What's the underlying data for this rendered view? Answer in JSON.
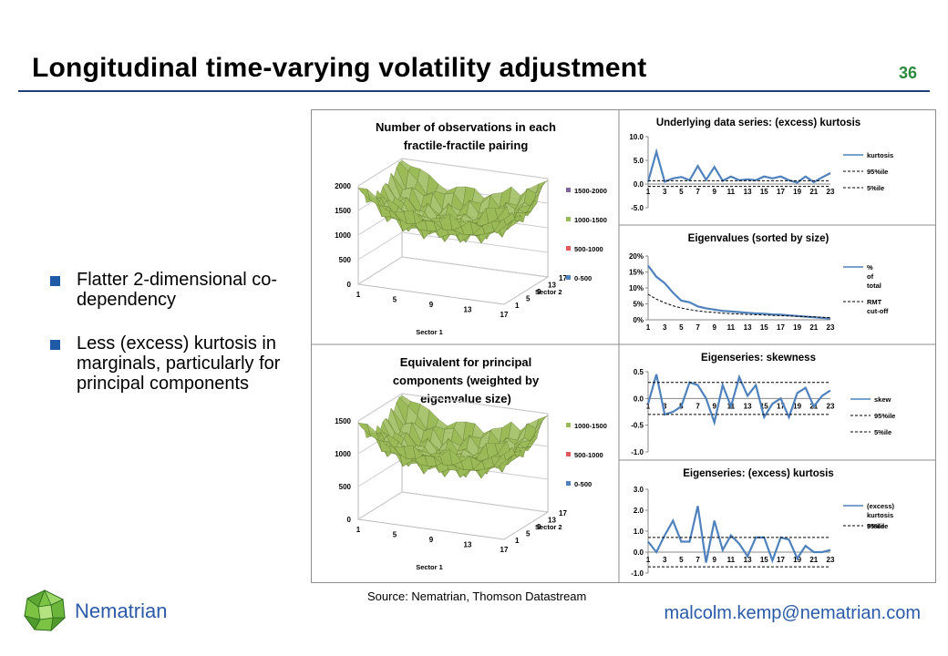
{
  "slide": {
    "title": "Longitudinal time-varying volatility adjustment",
    "page_number": "36",
    "bullets": [
      "Flatter 2-dimensional co-dependency",
      "Less (excess) kurtosis in marginals, particularly for principal components"
    ],
    "source": "Source: Nematrian, Thomson Datastream",
    "brand": "Nematrian",
    "email": "malcolm.kemp@nematrian.com"
  },
  "colors": {
    "series_blue": "#4f81bd",
    "surface_green": "#9bbb59",
    "surface_red": "#e0585a",
    "legend_purple": "#8064a2",
    "legend_blue": "#4f81bd",
    "title_rule": "#1f3f7a",
    "brand_blue": "#2a5aa8",
    "page_number_green": "#2b8a3e"
  },
  "chart_data": [
    {
      "id": "surface-obs",
      "type": "surface",
      "title": [
        "Number of observations in each",
        "fractile-fractile pairing"
      ],
      "xlabel": "Sector 1",
      "ylabel": "Sector 2",
      "x_ticks": [
        "1",
        "5",
        "9",
        "13",
        "17"
      ],
      "y_ticks": [
        "1",
        "5",
        "9",
        "13",
        "17"
      ],
      "z_ticks": [
        "0",
        "500",
        "1000",
        "1500",
        "2000"
      ],
      "zlim": [
        0,
        2000
      ],
      "legend": [
        {
          "label": "1500-2000",
          "color": "#8064a2"
        },
        {
          "label": "1000-1500",
          "color": "#9bbb59"
        },
        {
          "label": "500-1000",
          "color": "#e0585a"
        },
        {
          "label": "0-500",
          "color": "#4f81bd"
        }
      ]
    },
    {
      "id": "surface-pc",
      "type": "surface",
      "title": [
        "Equivalent for principal",
        "components (weighted by",
        "eigenvalue size)"
      ],
      "xlabel": "Sector 1",
      "ylabel": "Sector 2",
      "x_ticks": [
        "1",
        "5",
        "9",
        "13",
        "17"
      ],
      "y_ticks": [
        "1",
        "5",
        "9",
        "13",
        "17"
      ],
      "z_ticks": [
        "0",
        "500",
        "1000",
        "1500"
      ],
      "zlim": [
        0,
        1500
      ],
      "legend": [
        {
          "label": "1000-1500",
          "color": "#9bbb59"
        },
        {
          "label": "500-1000",
          "color": "#e0585a"
        },
        {
          "label": "0-500",
          "color": "#4f81bd"
        }
      ]
    },
    {
      "id": "kurtosis-series",
      "type": "line",
      "title": "Underlying data series: (excess) kurtosis",
      "x": [
        1,
        2,
        3,
        4,
        5,
        6,
        7,
        8,
        9,
        10,
        11,
        12,
        13,
        14,
        15,
        16,
        17,
        18,
        19,
        20,
        21,
        22,
        23
      ],
      "x_ticks": [
        "1",
        "3",
        "5",
        "7",
        "9",
        "11",
        "13",
        "15",
        "17",
        "19",
        "21",
        "23"
      ],
      "ylim": [
        -5,
        10
      ],
      "y_ticks": [
        "-5.0",
        "0.0",
        "5.0",
        "10.0"
      ],
      "series": [
        {
          "name": "kurtosis",
          "style": "solid",
          "values": [
            0.5,
            6.8,
            0.5,
            1.2,
            1.5,
            0.8,
            3.8,
            0.9,
            3.6,
            0.7,
            1.6,
            0.8,
            1.0,
            0.8,
            1.6,
            1.2,
            1.6,
            0.8,
            0.3,
            1.6,
            0.4,
            1.4,
            2.3
          ]
        },
        {
          "name": "95%ile",
          "style": "dashed",
          "values": [
            0.7,
            0.7,
            0.7,
            0.7,
            0.7,
            0.7,
            0.7,
            0.7,
            0.7,
            0.7,
            0.7,
            0.7,
            0.7,
            0.7,
            0.7,
            0.7,
            0.7,
            0.7,
            0.7,
            0.7,
            0.7,
            0.7,
            0.7
          ]
        },
        {
          "name": "5%ile",
          "style": "dashed",
          "values": [
            -0.5,
            -0.5,
            -0.5,
            -0.5,
            -0.5,
            -0.5,
            -0.5,
            -0.5,
            -0.5,
            -0.5,
            -0.5,
            -0.5,
            -0.5,
            -0.5,
            -0.5,
            -0.5,
            -0.5,
            -0.5,
            -0.5,
            -0.5,
            -0.5,
            -0.5,
            -0.5
          ]
        }
      ]
    },
    {
      "id": "eigenvalues",
      "type": "line",
      "title": "Eigenvalues (sorted by size)",
      "x": [
        1,
        2,
        3,
        4,
        5,
        6,
        7,
        8,
        9,
        10,
        11,
        12,
        13,
        14,
        15,
        16,
        17,
        18,
        19,
        20,
        21,
        22,
        23
      ],
      "x_ticks": [
        "1",
        "3",
        "5",
        "7",
        "9",
        "11",
        "13",
        "15",
        "17",
        "19",
        "21",
        "23"
      ],
      "ylim": [
        0,
        20
      ],
      "y_ticks": [
        "0%",
        "5%",
        "10%",
        "15%",
        "20%"
      ],
      "series": [
        {
          "name": "% of total",
          "style": "solid",
          "values": [
            17,
            13.5,
            11.5,
            8.5,
            6,
            5.5,
            4.2,
            3.6,
            3.2,
            2.8,
            2.6,
            2.4,
            2.2,
            2.0,
            1.9,
            1.7,
            1.6,
            1.4,
            1.2,
            1.0,
            0.8,
            0.6,
            0.4
          ]
        },
        {
          "name": "RMT cut-off",
          "style": "dashed",
          "values": [
            8,
            6.5,
            5.3,
            4.4,
            3.7,
            3.2,
            2.8,
            2.5,
            2.3,
            2.1,
            1.9,
            1.8,
            1.7,
            1.6,
            1.5,
            1.4,
            1.3,
            1.2,
            1.1,
            1.0,
            0.9,
            0.8,
            0.7
          ]
        }
      ]
    },
    {
      "id": "eigen-skew",
      "type": "line",
      "title": "Eigenseries: skewness",
      "x": [
        1,
        2,
        3,
        4,
        5,
        6,
        7,
        8,
        9,
        10,
        11,
        12,
        13,
        14,
        15,
        16,
        17,
        18,
        19,
        20,
        21,
        22,
        23
      ],
      "x_ticks": [
        "1",
        "3",
        "5",
        "7",
        "9",
        "11",
        "13",
        "15",
        "17",
        "19",
        "21",
        "23"
      ],
      "ylim": [
        -1,
        0.5
      ],
      "y_ticks": [
        "-1.0",
        "-0.5",
        "0.0",
        "0.5"
      ],
      "series": [
        {
          "name": "skew",
          "style": "solid",
          "values": [
            -0.1,
            0.45,
            -0.3,
            -0.25,
            -0.15,
            0.3,
            0.25,
            0.0,
            -0.45,
            0.25,
            -0.15,
            0.4,
            0.05,
            0.25,
            -0.35,
            -0.1,
            0.0,
            -0.35,
            0.1,
            0.2,
            -0.15,
            0.05,
            0.15
          ]
        },
        {
          "name": "95%ile",
          "style": "dashed",
          "values": [
            0.3,
            0.3,
            0.3,
            0.3,
            0.3,
            0.3,
            0.3,
            0.3,
            0.3,
            0.3,
            0.3,
            0.3,
            0.3,
            0.3,
            0.3,
            0.3,
            0.3,
            0.3,
            0.3,
            0.3,
            0.3,
            0.3,
            0.3
          ]
        },
        {
          "name": "5%ile",
          "style": "dashed",
          "values": [
            -0.3,
            -0.3,
            -0.3,
            -0.3,
            -0.3,
            -0.3,
            -0.3,
            -0.3,
            -0.3,
            -0.3,
            -0.3,
            -0.3,
            -0.3,
            -0.3,
            -0.3,
            -0.3,
            -0.3,
            -0.3,
            -0.3,
            -0.3,
            -0.3,
            -0.3,
            -0.3
          ]
        }
      ]
    },
    {
      "id": "eigen-kurt",
      "type": "line",
      "title": "Eigenseries: (excess) kurtosis",
      "x": [
        1,
        2,
        3,
        4,
        5,
        6,
        7,
        8,
        9,
        10,
        11,
        12,
        13,
        14,
        15,
        16,
        17,
        18,
        19,
        20,
        21,
        22,
        23
      ],
      "x_ticks": [
        "1",
        "3",
        "5",
        "7",
        "9",
        "11",
        "13",
        "15",
        "17",
        "19",
        "21",
        "23"
      ],
      "ylim": [
        -1,
        3
      ],
      "y_ticks": [
        "-1.0",
        "0.0",
        "1.0",
        "2.0",
        "3.0"
      ],
      "series": [
        {
          "name": "(excess) kurtosis",
          "style": "solid",
          "values": [
            0.5,
            0.0,
            0.8,
            1.5,
            0.5,
            0.5,
            2.2,
            -0.5,
            1.5,
            0.1,
            0.8,
            0.4,
            -0.2,
            0.7,
            0.7,
            -0.4,
            0.7,
            0.6,
            -0.3,
            0.3,
            0.0,
            0.0,
            0.1
          ]
        },
        {
          "name": "95%ile",
          "style": "dashed",
          "values": [
            0.7,
            0.7,
            0.7,
            0.7,
            0.7,
            0.7,
            0.7,
            0.7,
            0.7,
            0.7,
            0.7,
            0.7,
            0.7,
            0.7,
            0.7,
            0.7,
            0.7,
            0.7,
            0.7,
            0.7,
            0.7,
            0.7,
            0.7
          ]
        },
        {
          "name": "5%ile",
          "style": "dashed",
          "values": [
            -0.7,
            -0.7,
            -0.7,
            -0.7,
            -0.7,
            -0.7,
            -0.7,
            -0.7,
            -0.7,
            -0.7,
            -0.7,
            -0.7,
            -0.7,
            -0.7,
            -0.7,
            -0.7,
            -0.7,
            -0.7,
            -0.7,
            -0.7,
            -0.7,
            -0.7,
            -0.7
          ]
        }
      ]
    }
  ]
}
